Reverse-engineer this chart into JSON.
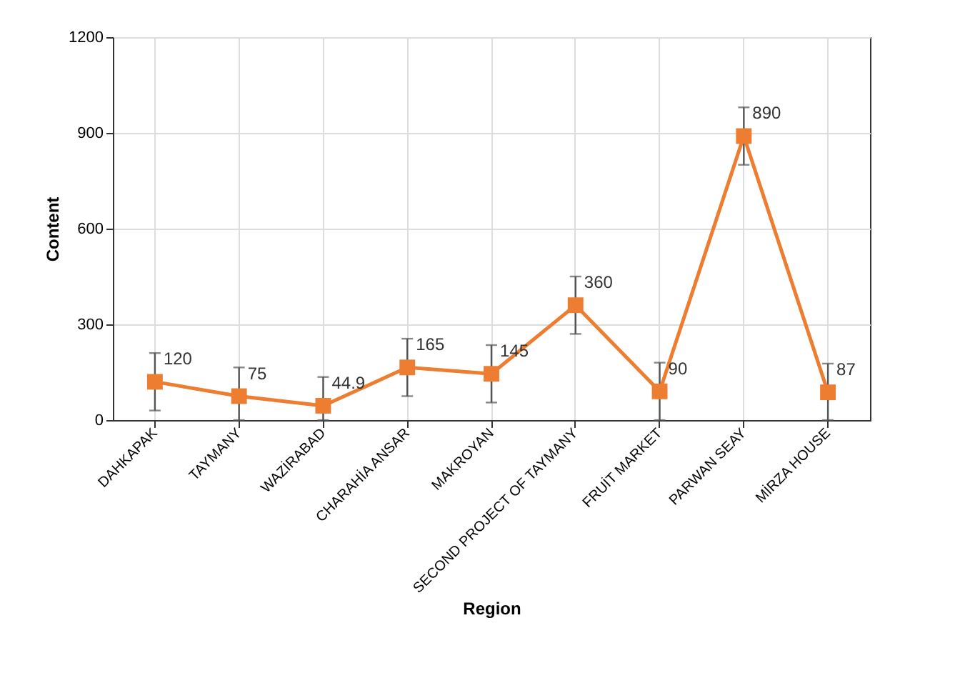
{
  "chart_data": {
    "type": "line",
    "xlabel": "Region",
    "ylabel": "Content",
    "categories": [
      "DAHKAPAK",
      "TAYMANY",
      "WAZİRABAD",
      "CHARAHİA ANSAR",
      "MAKROYAN",
      "SECOND PROJECT OF TAYMANY",
      "FRUİT MARKET",
      "PARWAN SEAY",
      "MİRZA HOUSE"
    ],
    "series": [
      {
        "color": "#ed7d31",
        "values": [
          120,
          75,
          44.9,
          165,
          145,
          360,
          90,
          890,
          87
        ],
        "errors": [
          90,
          [
            0,
            165
          ],
          [
            0,
            135
          ],
          90,
          90,
          90,
          [
            0,
            180
          ],
          90,
          [
            0,
            177
          ]
        ]
      }
    ],
    "ylim": [
      0,
      1200
    ],
    "yticks": [
      0,
      300,
      600,
      900,
      1200
    ],
    "grid": true,
    "data_labels": true,
    "marker": "square",
    "line_style": "solid"
  }
}
